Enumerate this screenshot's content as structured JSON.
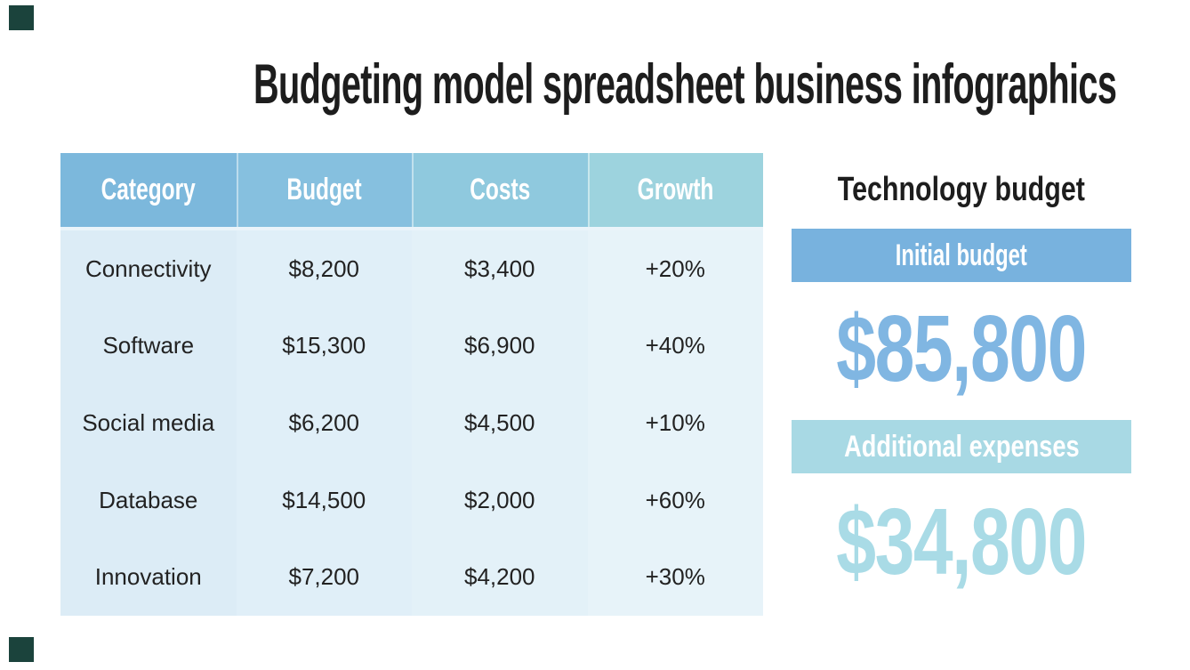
{
  "title": "Budgeting model spreadsheet business infographics",
  "chart_data": {
    "type": "table",
    "title": "Budgeting model spreadsheet business infographics",
    "columns": [
      "Category",
      "Budget",
      "Costs",
      "Growth"
    ],
    "rows": [
      [
        "Connectivity",
        "$8,200",
        "$3,400",
        "+20%"
      ],
      [
        "Software",
        "$15,300",
        "$6,900",
        "+40%"
      ],
      [
        "Social media",
        "$6,200",
        "$4,500",
        "+10%"
      ],
      [
        "Database",
        "$14,500",
        "$2,000",
        "+60%"
      ],
      [
        "Innovation",
        "$7,200",
        "$4,200",
        "+30%"
      ]
    ]
  },
  "panel": {
    "heading": "Technology budget",
    "sections": [
      {
        "label": "Initial budget",
        "amount": "$85,800",
        "banner_bg": "#78b2de",
        "amount_color": "#80b6e2"
      },
      {
        "label": "Additional expenses",
        "amount": "$34,800",
        "banner_bg": "#a8d9e4",
        "amount_color": "#a9dbe6"
      }
    ]
  },
  "colors": {
    "page_bg": "#ffffff",
    "title_color": "#1d1d1d",
    "body_text": "#222222",
    "header_text": "#ffffff",
    "header_cols": [
      "#7cb8dc",
      "#86c0df",
      "#8fc9de",
      "#9dd3de"
    ],
    "body_cols": [
      "#dcecf6",
      "#e0eff8",
      "#e3f1f8",
      "#e7f3f9"
    ],
    "header_gap": "#eaf4fa",
    "corner_square": "#1b433c"
  }
}
